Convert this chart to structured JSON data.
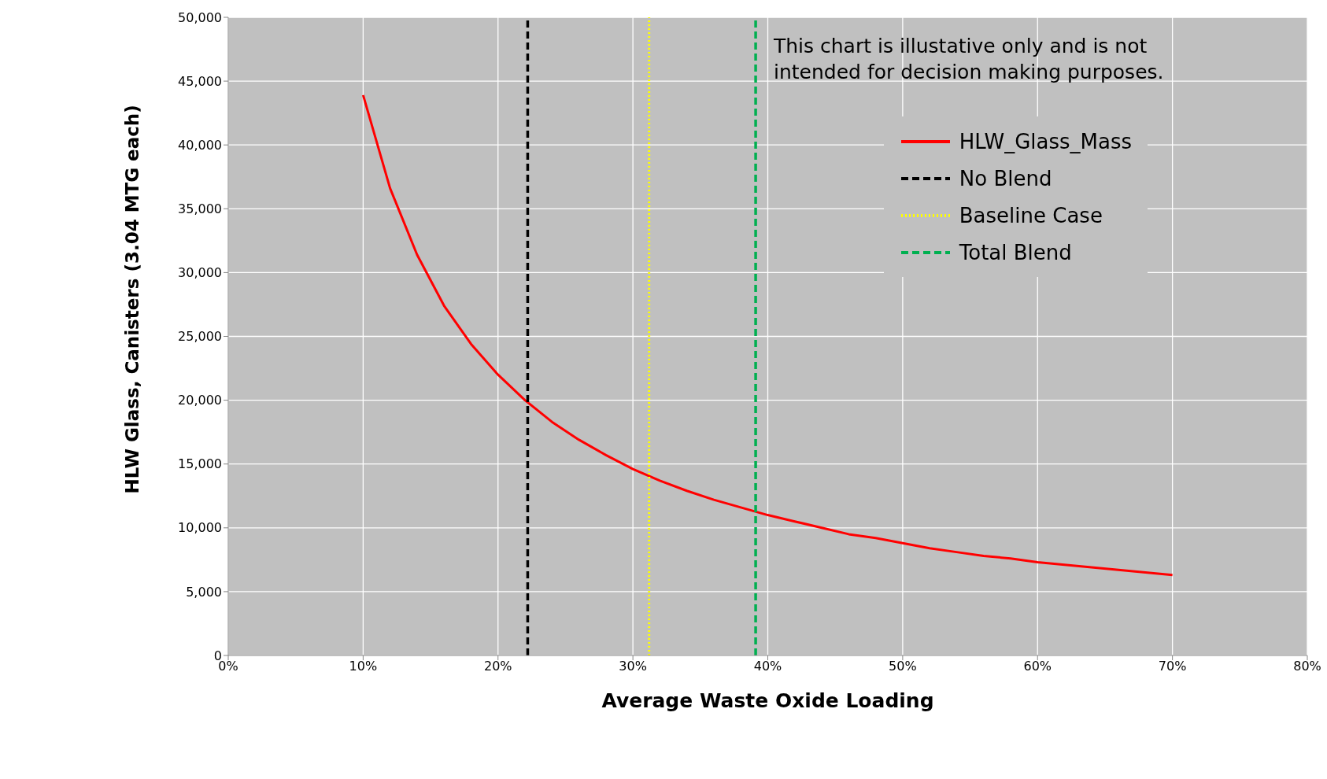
{
  "chart_data": {
    "type": "line",
    "xlabel": "Average Waste Oxide Loading",
    "ylabel": "HLW Glass, Canisters (3.04 MTG each)",
    "xlim": [
      0,
      80
    ],
    "xticks": [
      {
        "value": 0,
        "label": "0%"
      },
      {
        "value": 10,
        "label": "10%"
      },
      {
        "value": 20,
        "label": "20%"
      },
      {
        "value": 30,
        "label": "30%"
      },
      {
        "value": 40,
        "label": "40%"
      },
      {
        "value": 50,
        "label": "50%"
      },
      {
        "value": 60,
        "label": "60%"
      },
      {
        "value": 70,
        "label": "70%"
      },
      {
        "value": 80,
        "label": "80%"
      }
    ],
    "ylim": [
      0,
      50000
    ],
    "yticks": [
      0,
      {
        "value": 5000,
        "label": "5,000"
      },
      {
        "value": 10000,
        "label": "10,000"
      },
      {
        "value": 15000,
        "label": "15,000"
      },
      {
        "value": 20000,
        "label": "20,000"
      },
      {
        "value": 25000,
        "label": "25,000"
      },
      {
        "value": 30000,
        "label": "30,000"
      },
      {
        "value": 35000,
        "label": "35,000"
      },
      {
        "value": 40000,
        "label": "40,000"
      },
      {
        "value": 45000,
        "label": "45,000"
      },
      {
        "value": 50000,
        "label": "50,000"
      }
    ],
    "grid": true,
    "legend": "top right",
    "marker": "none",
    "annotations": [
      "This chart is illustative only and is not intended for decision making purposes."
    ],
    "series": [
      {
        "name": "HLW_Glass_Mass",
        "color": "#ff0000",
        "line_style": "solid",
        "x": [
          10,
          12,
          14,
          16,
          18,
          20,
          22,
          24,
          26,
          28,
          30,
          32,
          34,
          36,
          38,
          40,
          42,
          44,
          46,
          48,
          50,
          52,
          54,
          56,
          58,
          60,
          62,
          64,
          66,
          68,
          70
        ],
        "values": [
          43900,
          36600,
          31400,
          27400,
          24400,
          22000,
          20000,
          18300,
          16900,
          15700,
          14600,
          13700,
          12900,
          12200,
          11600,
          11000,
          10500,
          10000,
          9500,
          9200,
          8800,
          8400,
          8100,
          7800,
          7600,
          7300,
          7100,
          6900,
          6700,
          6500,
          6300
        ]
      },
      {
        "name": "No Blend",
        "color": "#000000",
        "line_style": "dashed",
        "x": [
          22.2,
          22.2
        ],
        "values": [
          0,
          50000
        ]
      },
      {
        "name": "Baseline Case",
        "color": "#ffff00",
        "line_style": "dotted",
        "x": [
          31.2,
          31.2
        ],
        "values": [
          0,
          50000
        ]
      },
      {
        "name": "Total Blend",
        "color": "#00b050",
        "line_style": "dashed",
        "x": [
          39.1,
          39.1
        ],
        "values": [
          0,
          50000
        ]
      }
    ]
  }
}
